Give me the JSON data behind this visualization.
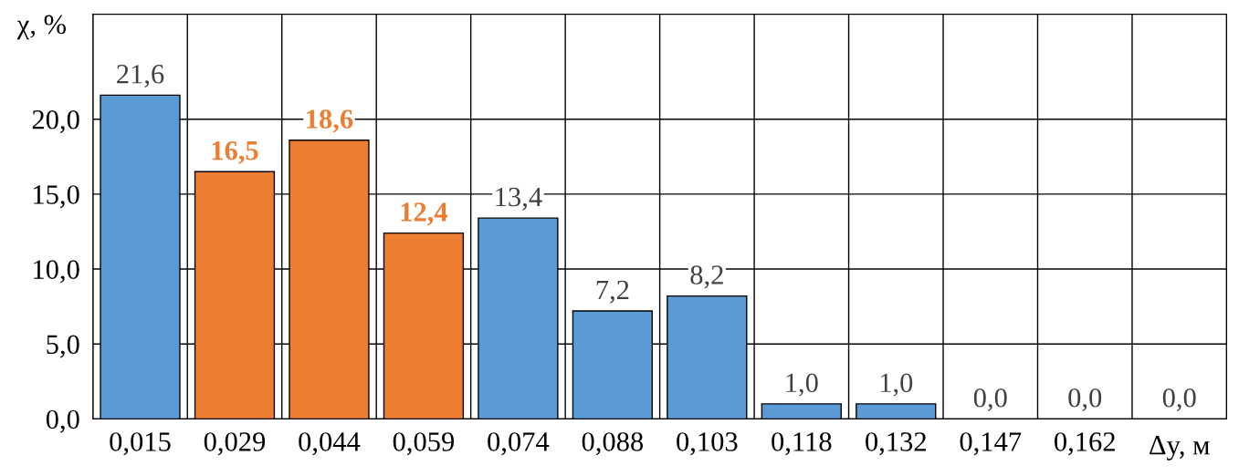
{
  "chart_data": {
    "type": "bar",
    "xlabel": "Δy, м",
    "ylabel": "χ, %",
    "categories": [
      "0,015",
      "0,029",
      "0,044",
      "0,059",
      "0,074",
      "0,088",
      "0,103",
      "0,118",
      "0,132",
      "0,147",
      "0,162",
      null
    ],
    "values": [
      21.6,
      16.5,
      18.6,
      12.4,
      13.4,
      7.2,
      8.2,
      1.0,
      1.0,
      0.0,
      0.0,
      0.0
    ],
    "colors": [
      "#5b9bd5",
      "#ed7d31",
      "#ed7d31",
      "#ed7d31",
      "#5b9bd5",
      "#5b9bd5",
      "#5b9bd5",
      "#5b9bd5",
      "#5b9bd5",
      "#5b9bd5",
      "#5b9bd5",
      "#5b9bd5"
    ],
    "value_labels": [
      "21,6",
      "16,5",
      "18,6",
      "12,4",
      "13,4",
      "7,2",
      "8,2",
      "1,0",
      "1,0",
      "0,0",
      "0,0",
      "0,0"
    ],
    "ylim": [
      0,
      27
    ],
    "yticks": [
      {
        "value": 0,
        "label": "0,0"
      },
      {
        "value": 5,
        "label": "5,0"
      },
      {
        "value": 10,
        "label": "10,0"
      },
      {
        "value": 15,
        "label": "15,0"
      },
      {
        "value": 20,
        "label": "20,0"
      }
    ],
    "grid": true
  }
}
